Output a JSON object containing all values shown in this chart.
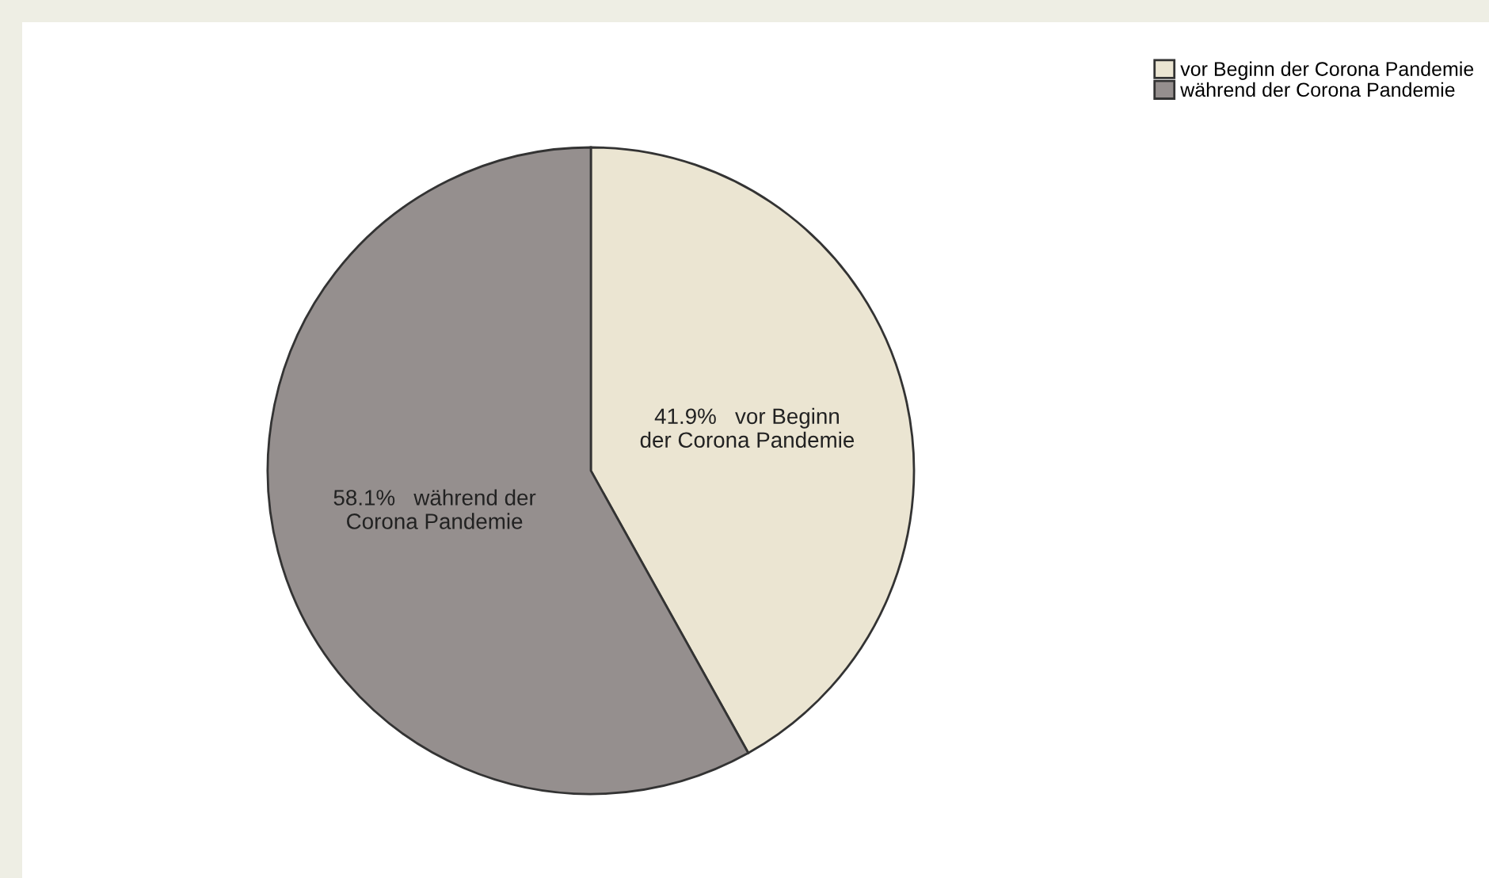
{
  "chart_data": {
    "type": "pie",
    "categories": [
      "vor Beginn der Corona Pandemie",
      "während der Corona Pandemie"
    ],
    "values": [
      41.9,
      58.1
    ],
    "colors": [
      "#ebe5d2",
      "#958f8e"
    ],
    "value_labels": [
      "41.9%   vor Beginn\nder Corona Pandemie",
      "58.1%   während der\nCorona Pandemie"
    ],
    "legend": "top right"
  }
}
